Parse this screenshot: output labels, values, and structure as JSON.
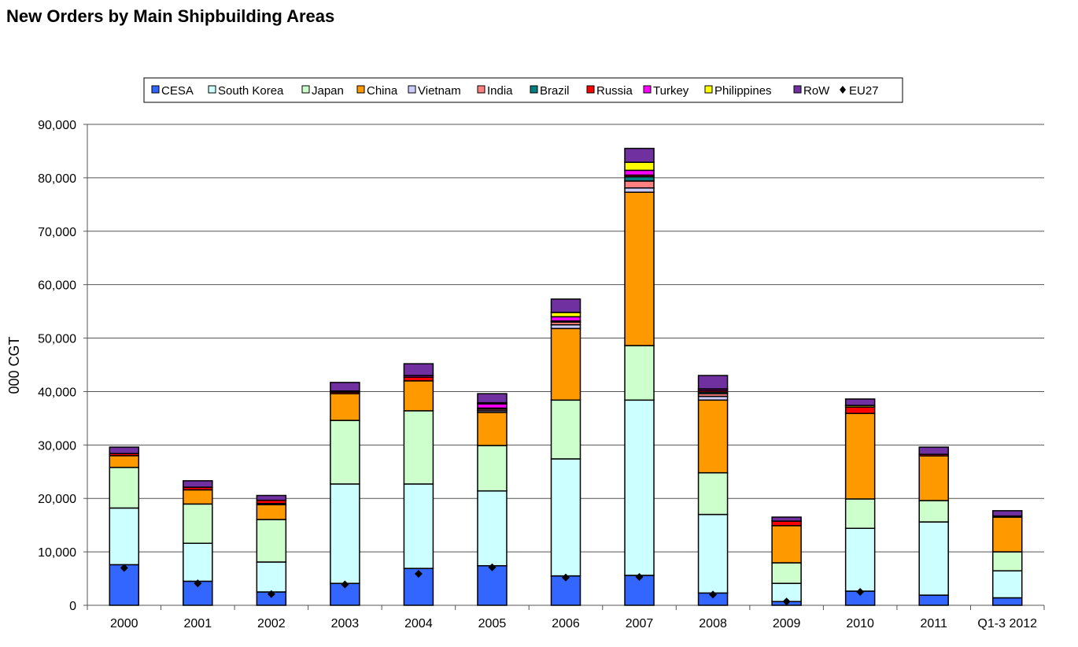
{
  "title": "New Orders by Main Shipbuilding Areas",
  "chart_data": {
    "type": "bar",
    "stacked": true,
    "title": "New Orders by Main Shipbuilding Areas",
    "xlabel": "",
    "ylabel": "000 CGT",
    "ylim": [
      0,
      90000
    ],
    "yticks": [
      "0",
      "10,000",
      "20,000",
      "30,000",
      "40,000",
      "50,000",
      "60,000",
      "70,000",
      "80,000",
      "90,000"
    ],
    "grid": true,
    "legend_position": "top-center",
    "categories": [
      "2000",
      "2001",
      "2002",
      "2003",
      "2004",
      "2005",
      "2006",
      "2007",
      "2008",
      "2009",
      "2010",
      "2011",
      "Q1-3 2012"
    ],
    "series": [
      {
        "name": "CESA",
        "color": "#3366FF",
        "values": [
          7600,
          4500,
          2500,
          4100,
          6900,
          7400,
          5500,
          5600,
          2300,
          700,
          2650,
          1900,
          1400
        ]
      },
      {
        "name": "South Korea",
        "color": "#CCFFFF",
        "values": [
          10600,
          7100,
          5600,
          18600,
          15800,
          14000,
          21900,
          32800,
          14700,
          3400,
          11750,
          13700,
          5050
        ]
      },
      {
        "name": "Japan",
        "color": "#CCFFCC",
        "values": [
          7600,
          7350,
          7950,
          11900,
          13700,
          8500,
          11000,
          10200,
          7800,
          3850,
          5500,
          4000,
          3550
        ]
      },
      {
        "name": "China",
        "color": "#FF9900",
        "values": [
          2200,
          2650,
          2800,
          5000,
          5600,
          6200,
          13400,
          28700,
          13600,
          6950,
          16000,
          8350,
          6500
        ]
      },
      {
        "name": "Vietnam",
        "color": "#CCCCFF",
        "values": [
          0,
          0,
          0,
          0,
          0,
          300,
          700,
          800,
          700,
          0,
          0,
          0,
          0
        ]
      },
      {
        "name": "India",
        "color": "#FF8080",
        "values": [
          0,
          0,
          200,
          0,
          0,
          300,
          500,
          1300,
          500,
          0,
          0,
          0,
          0
        ]
      },
      {
        "name": "Brazil",
        "color": "#008080",
        "values": [
          0,
          0,
          0,
          0,
          0,
          0,
          0,
          800,
          300,
          0,
          0,
          0,
          0
        ]
      },
      {
        "name": "Russia",
        "color": "#FF0000",
        "values": [
          400,
          500,
          600,
          300,
          700,
          200,
          200,
          300,
          300,
          850,
          1200,
          300,
          200
        ]
      },
      {
        "name": "Turkey",
        "color": "#FF00FF",
        "values": [
          0,
          0,
          0,
          200,
          300,
          800,
          800,
          900,
          300,
          0,
          0,
          0,
          0
        ]
      },
      {
        "name": "Philippines",
        "color": "#FFFF00",
        "values": [
          0,
          0,
          0,
          0,
          0,
          200,
          800,
          1500,
          0,
          0,
          300,
          0,
          0
        ]
      },
      {
        "name": "RoW",
        "color": "#7030A0",
        "values": [
          1200,
          1200,
          900,
          1600,
          2200,
          1700,
          2500,
          2600,
          2500,
          750,
          1200,
          1350,
          1000
        ]
      }
    ],
    "markers": {
      "name": "EU27",
      "color": "#000000",
      "values": [
        7000,
        4100,
        2100,
        3900,
        5900,
        7100,
        5200,
        5300,
        2000,
        700,
        2500,
        null,
        null
      ]
    }
  }
}
